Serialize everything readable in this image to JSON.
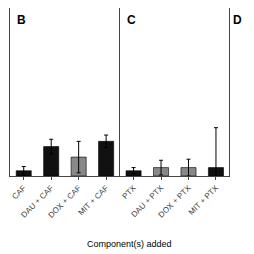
{
  "chart_data": [
    {
      "type": "bar",
      "title": "B",
      "xlabel": "Component(s) added",
      "categories": [
        "CAF",
        "DAU + CAF",
        "DOX + CAF",
        "MIT + CAF"
      ],
      "values": [
        0.05,
        0.28,
        0.18,
        0.33
      ],
      "errors": [
        0.04,
        0.07,
        0.15,
        0.06
      ],
      "colors": [
        "#111111",
        "#111111",
        "#888888",
        "#111111"
      ],
      "ylim": [
        0.0,
        1.6
      ],
      "grid": false,
      "tick_labels": "x"
    },
    {
      "type": "bar",
      "title": "C",
      "categories": [
        "PTX",
        "DAU + PTX",
        "DOX + PTX",
        "MIT + PTX"
      ],
      "values": [
        0.05,
        0.08,
        0.08,
        0.08
      ],
      "errors": [
        0.03,
        0.07,
        0.08,
        0.38
      ],
      "colors": [
        "#111111",
        "#888888",
        "#888888",
        "#111111"
      ],
      "ylim": [
        0.0,
        1.6
      ],
      "grid": false,
      "tick_labels": "x"
    },
    {
      "type": "bar",
      "title": "D",
      "categories": [],
      "values": [],
      "errors": [],
      "colors": [],
      "ylim": [
        0.0,
        1.6
      ],
      "grid": false,
      "tick_labels": false
    }
  ]
}
